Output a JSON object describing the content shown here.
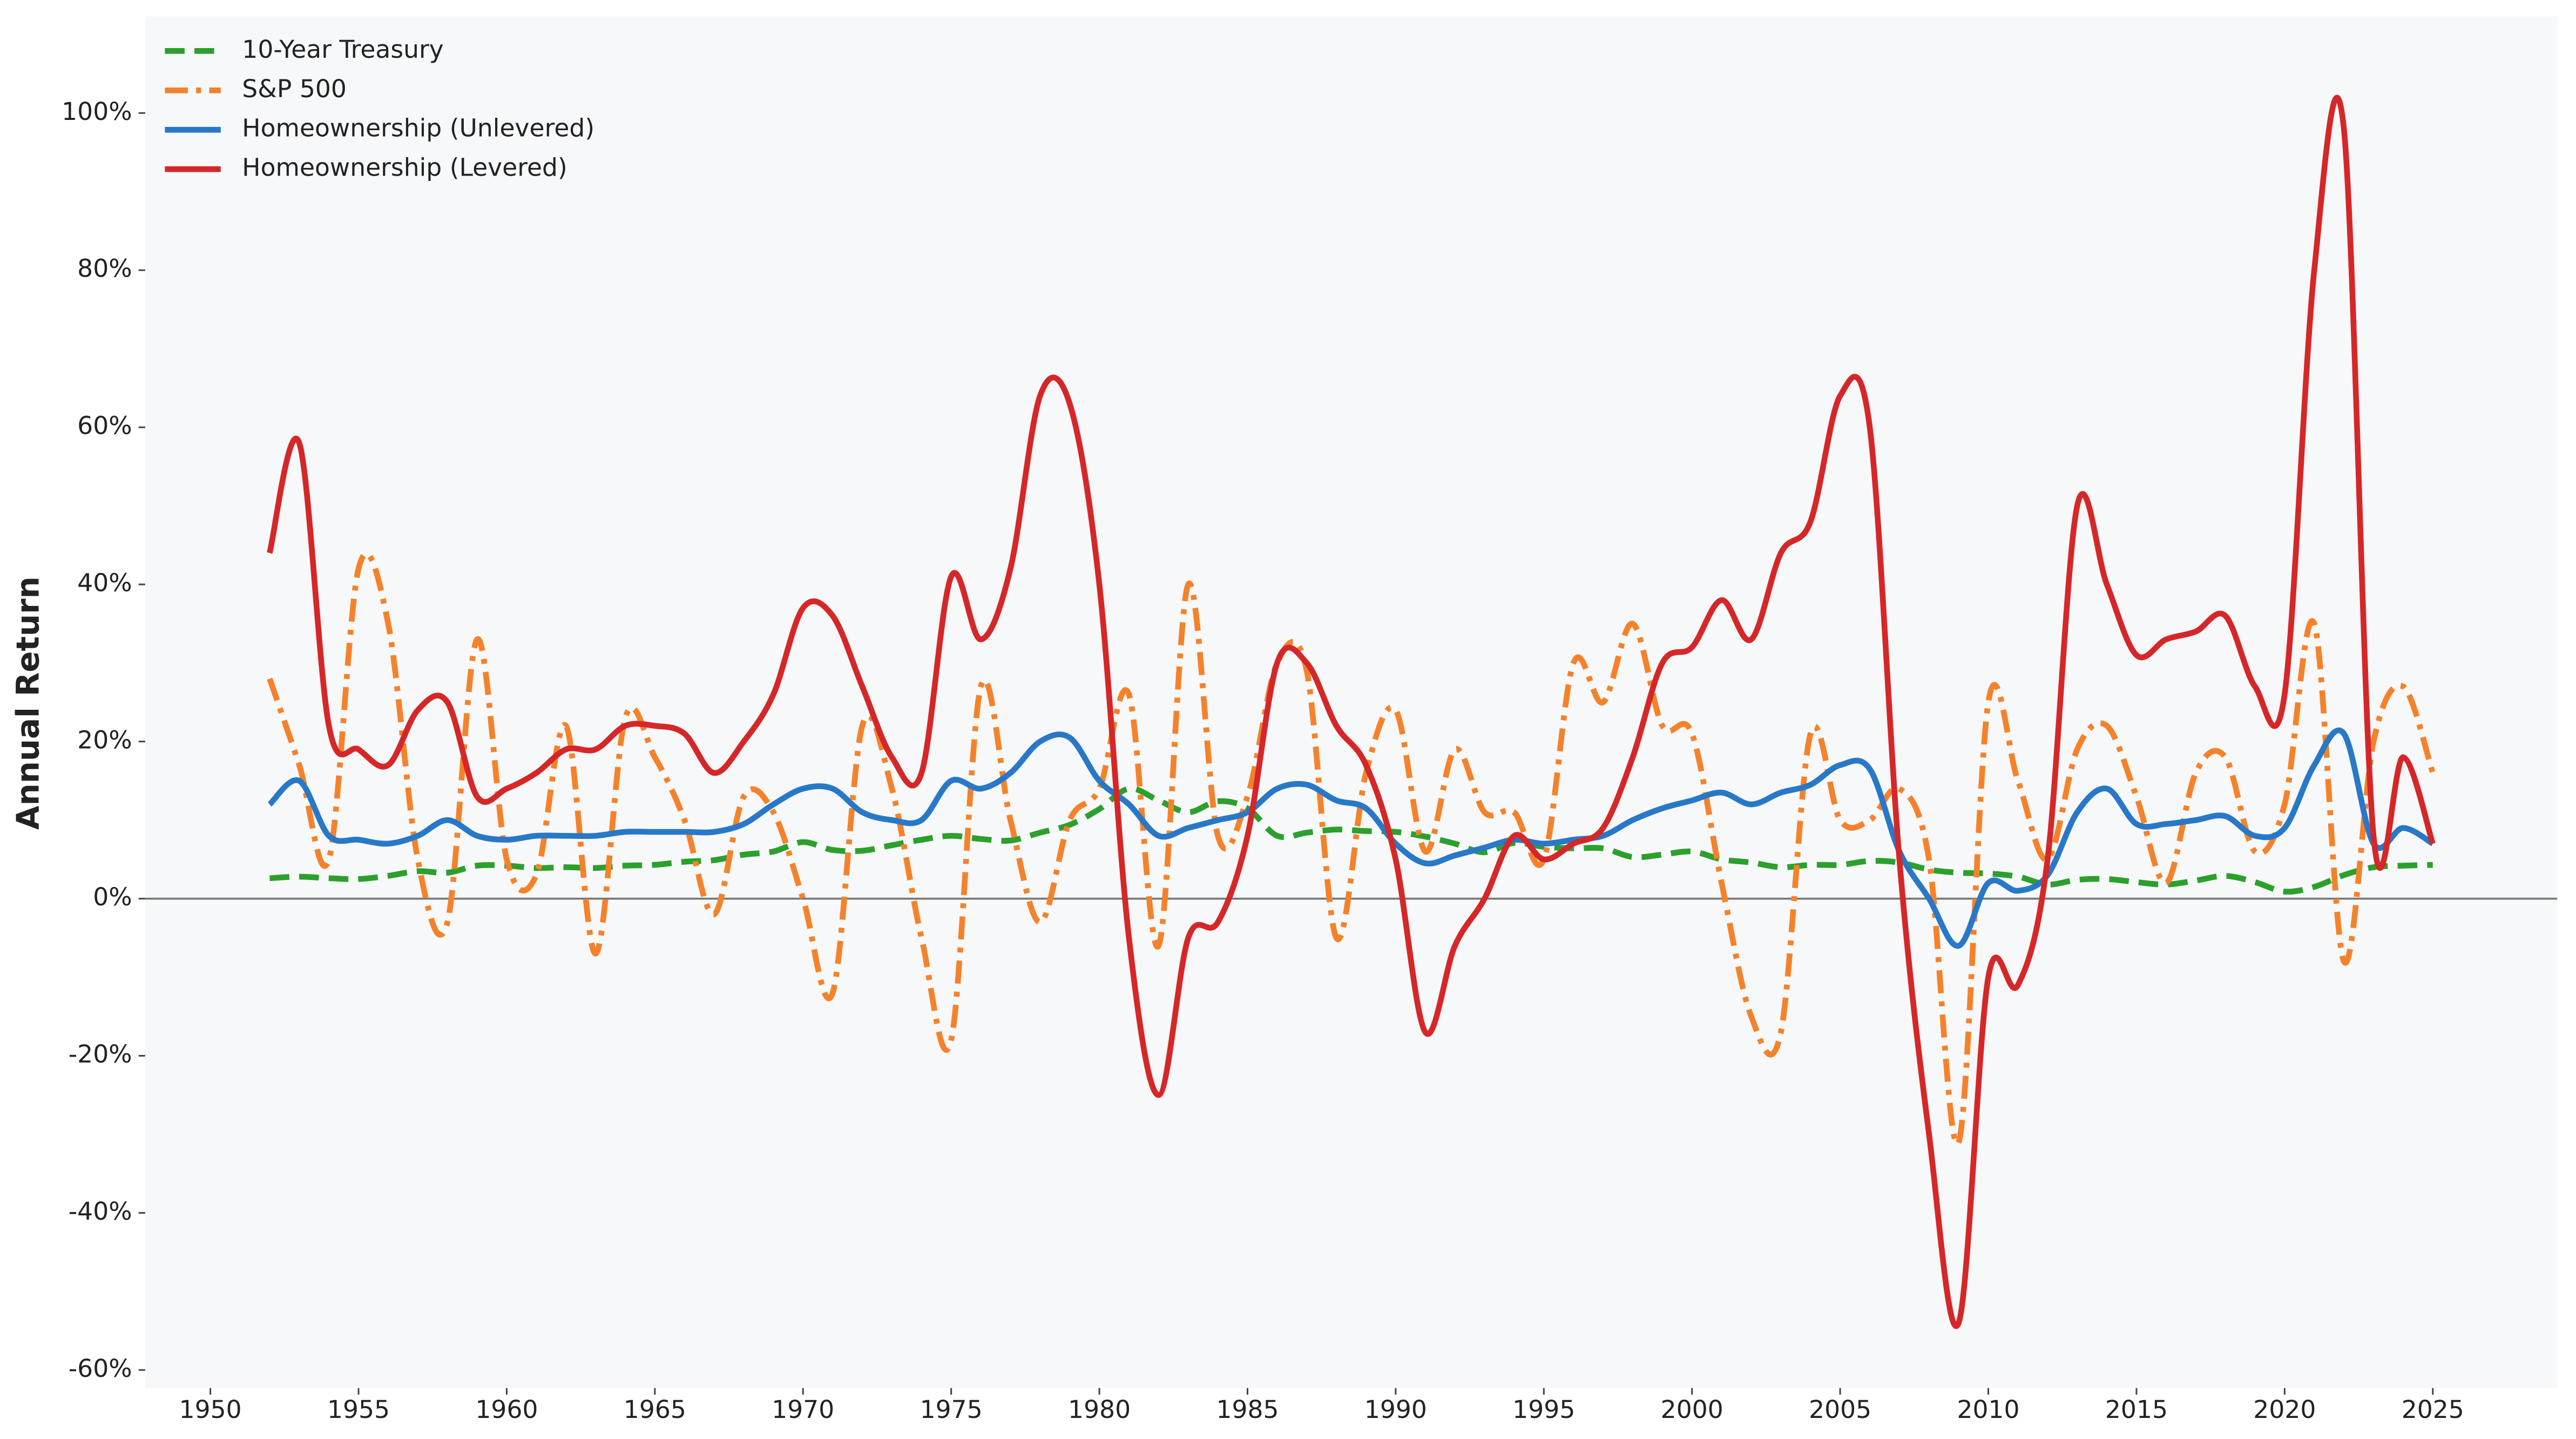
{
  "chart_data": {
    "type": "line",
    "y_label": "Annual Return",
    "x": [
      1952,
      1953,
      1954,
      1955,
      1956,
      1957,
      1958,
      1959,
      1960,
      1961,
      1962,
      1963,
      1964,
      1965,
      1966,
      1967,
      1968,
      1969,
      1970,
      1971,
      1972,
      1973,
      1974,
      1975,
      1976,
      1977,
      1978,
      1979,
      1980,
      1981,
      1982,
      1983,
      1984,
      1985,
      1986,
      1987,
      1988,
      1989,
      1990,
      1991,
      1992,
      1993,
      1994,
      1995,
      1996,
      1997,
      1998,
      1999,
      2000,
      2001,
      2002,
      2003,
      2004,
      2005,
      2006,
      2007,
      2008,
      2009,
      2010,
      2011,
      2012,
      2013,
      2014,
      2015,
      2016,
      2017,
      2018,
      2019,
      2020,
      2021,
      2022,
      2023,
      2024,
      2025
    ],
    "xlim": [
      1947.8,
      2029.2
    ],
    "xticks": [
      1950,
      1955,
      1960,
      1965,
      1970,
      1975,
      1980,
      1985,
      1990,
      1995,
      2000,
      2005,
      2010,
      2015,
      2020,
      2025
    ],
    "ylim": [
      -62.3,
      112.3
    ],
    "yticks": [
      {
        "value": -60,
        "label": "-60%"
      },
      {
        "value": -40,
        "label": "-40%"
      },
      {
        "value": -20,
        "label": "-20%"
      },
      {
        "value": 0,
        "label": "0%"
      },
      {
        "value": 20,
        "label": "20%"
      },
      {
        "value": 40,
        "label": "40%"
      },
      {
        "value": 60,
        "label": "60%"
      },
      {
        "value": 80,
        "label": "80%"
      },
      {
        "value": 100,
        "label": "100%"
      }
    ],
    "legend": "upper left",
    "series": [
      {
        "name": "10-Year Treasury",
        "color": "#2ca02c",
        "dash": "dashed",
        "values": [
          2.6,
          2.8,
          2.6,
          2.5,
          2.9,
          3.5,
          3.3,
          4.2,
          4.2,
          3.9,
          4,
          3.9,
          4.2,
          4.3,
          4.7,
          4.9,
          5.6,
          6,
          7.2,
          6.2,
          6.1,
          6.8,
          7.5,
          8,
          7.6,
          7.4,
          8.4,
          9.4,
          11.4,
          14,
          12.5,
          11,
          12.4,
          11.5,
          8,
          8.4,
          8.8,
          8.6,
          8.5,
          7.9,
          7,
          5.9,
          7.1,
          6.6,
          6.4,
          6.4,
          5.3,
          5.6,
          6,
          5,
          4.6,
          4,
          4.3,
          4.3,
          4.8,
          4.6,
          3.7,
          3.3,
          3.2,
          2.8,
          1.8,
          2.4,
          2.5,
          2.1,
          1.8,
          2.3,
          2.9,
          2.1,
          0.9,
          1.5,
          3,
          4,
          4.2,
          4.3
        ]
      },
      {
        "name": "S&P 500",
        "color": "#f5822a",
        "dash": "dashdot",
        "values": [
          28,
          17,
          5,
          42,
          35,
          5,
          -3,
          33,
          5,
          3,
          22,
          -7,
          23,
          18,
          10,
          -2,
          13,
          11,
          0,
          -12,
          22,
          14,
          -5,
          -18,
          27,
          10,
          -3,
          10,
          14,
          26,
          -6,
          40,
          8,
          13,
          30,
          29,
          -5,
          16,
          24,
          6,
          19,
          11,
          11,
          5,
          30,
          25,
          35,
          22,
          21,
          2,
          -15,
          -17,
          21,
          10,
          10,
          14,
          5,
          -31,
          25,
          15,
          5,
          19,
          22,
          13,
          2,
          16,
          18,
          6,
          12,
          35,
          -8,
          20,
          27,
          16
        ]
      },
      {
        "name": "Homeownership (Unlevered)",
        "color": "#2878c8",
        "dash": "solid",
        "values": [
          12,
          15,
          8,
          7.5,
          7,
          8,
          10,
          8,
          7.5,
          8,
          8,
          8,
          8.5,
          8.5,
          8.5,
          8.5,
          9.5,
          12,
          14,
          14,
          11,
          10,
          10,
          15,
          14,
          16,
          20,
          20.5,
          15,
          12,
          8,
          9,
          10,
          11,
          14,
          14.5,
          12.5,
          11.5,
          7,
          4.5,
          5.5,
          6.5,
          7.5,
          7,
          7.5,
          8,
          10,
          11.5,
          12.5,
          13.5,
          12,
          13.5,
          14.5,
          17,
          16.5,
          6,
          0,
          -6,
          2,
          1,
          3,
          11,
          14,
          9.5,
          9.5,
          10,
          10.5,
          8,
          9,
          17,
          21,
          7,
          9,
          7
        ]
      },
      {
        "name": "Homeownership (Levered)",
        "color": "#d62728",
        "dash": "solid",
        "values": [
          44,
          58,
          22,
          19,
          17,
          24,
          25,
          13,
          14,
          16,
          19,
          19,
          22,
          22,
          21,
          16,
          20,
          26,
          37,
          36,
          27,
          18,
          16,
          41,
          33,
          42,
          64,
          63,
          40,
          -5,
          -25,
          -5,
          -3,
          8,
          30,
          30,
          22,
          17,
          5,
          -17,
          -6,
          0,
          8,
          5,
          7,
          9,
          18,
          30,
          32,
          38,
          33,
          44,
          48,
          64,
          60,
          5,
          -30,
          -54,
          -10,
          -11,
          5,
          50,
          40,
          31,
          33,
          34,
          36,
          27,
          26,
          80,
          98,
          8,
          18,
          7
        ]
      }
    ]
  }
}
